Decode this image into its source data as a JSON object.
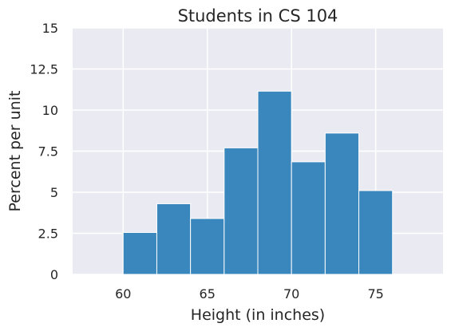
{
  "chart_data": {
    "type": "bar",
    "title": "Students in CS 104",
    "xlabel": "Height (in inches)",
    "ylabel": "Percent per unit",
    "xlim": [
      57,
      79
    ],
    "ylim": [
      0,
      15
    ],
    "xticks": [
      60,
      65,
      70,
      75
    ],
    "xtick_labels": [
      "60",
      "65",
      "70",
      "75"
    ],
    "yticks": [
      0,
      2.5,
      5,
      7.5,
      10,
      12.5,
      15
    ],
    "ytick_labels": [
      "0",
      "2.5",
      "5",
      "7.5",
      "10",
      "12.5",
      "15"
    ],
    "grid": true,
    "bins": [
      {
        "start": 60,
        "end": 62,
        "value": 2.55
      },
      {
        "start": 62,
        "end": 64,
        "value": 4.3
      },
      {
        "start": 64,
        "end": 66,
        "value": 3.4
      },
      {
        "start": 66,
        "end": 68,
        "value": 7.7
      },
      {
        "start": 68,
        "end": 70,
        "value": 11.15
      },
      {
        "start": 70,
        "end": 72,
        "value": 6.85
      },
      {
        "start": 72,
        "end": 74,
        "value": 8.6
      },
      {
        "start": 74,
        "end": 76,
        "value": 5.1
      }
    ]
  },
  "colors": {
    "plot_background": "#eaeaf2",
    "grid": "#ffffff",
    "bar_fill": "#3a87bd",
    "bar_edge": "#ffffff",
    "text": "#262626"
  }
}
